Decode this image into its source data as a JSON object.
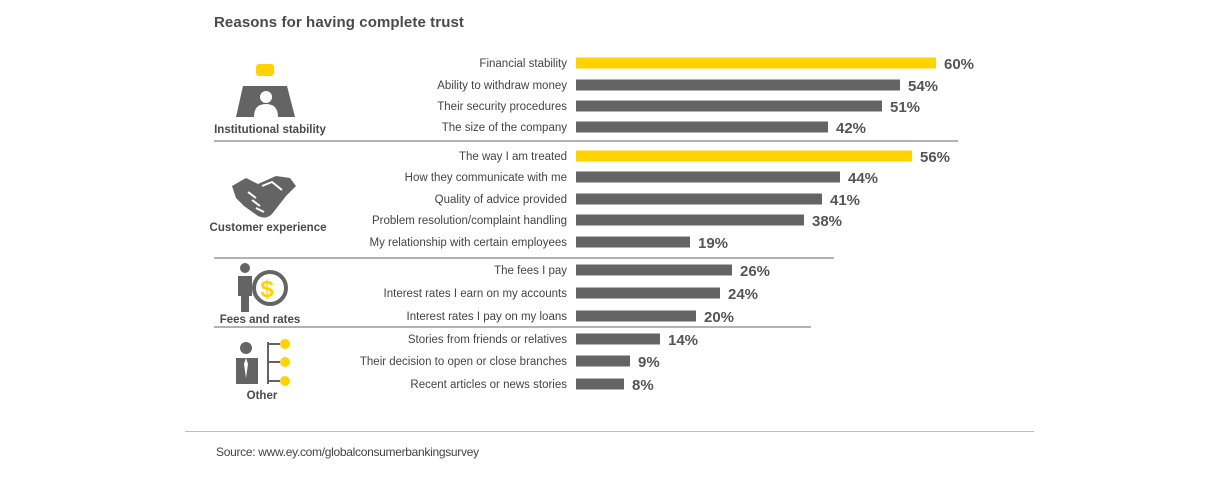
{
  "title": "Reasons for having complete trust",
  "source": "Source: www.ey.com/globalconsumerbankingsurvey",
  "colors": {
    "highlight": "#ffd200",
    "bar": "#646464",
    "text": "#4a4a4a",
    "icon": "#646464"
  },
  "groups": [
    {
      "label": "Institutional stability",
      "icon": "institution-icon"
    },
    {
      "label": "Customer experience",
      "icon": "handshake-icon"
    },
    {
      "label": "Fees and rates",
      "icon": "person-dollar-icon"
    },
    {
      "label": "Other",
      "icon": "person-options-icon"
    }
  ],
  "chart_data": {
    "type": "bar",
    "orientation": "horizontal",
    "title": "Reasons for having complete trust",
    "unit": "%",
    "xlim": [
      0,
      60
    ],
    "categories": [
      "Financial stability",
      "Ability to withdraw money",
      "Their security procedures",
      "The size of the company",
      "The way I am treated",
      "How they communicate with me",
      "Quality of advice provided",
      "Problem resolution/complaint handling",
      "My relationship with certain employees",
      "The fees I pay",
      "Interest rates I earn on my accounts",
      "Interest rates I pay on my loans",
      "Stories from friends or relatives",
      "Their decision to open or close branches",
      "Recent articles or news stories"
    ],
    "values": [
      60,
      54,
      51,
      42,
      56,
      44,
      41,
      38,
      19,
      26,
      24,
      20,
      14,
      9,
      8
    ],
    "labels": [
      "60%",
      "54%",
      "51%",
      "42%",
      "56%",
      "44%",
      "41%",
      "38%",
      "19%",
      "26%",
      "24%",
      "20%",
      "14%",
      "9%",
      "8%"
    ],
    "group_index": [
      0,
      0,
      0,
      0,
      1,
      1,
      1,
      1,
      1,
      2,
      2,
      2,
      3,
      3,
      3
    ],
    "highlighted": [
      0,
      4
    ]
  }
}
